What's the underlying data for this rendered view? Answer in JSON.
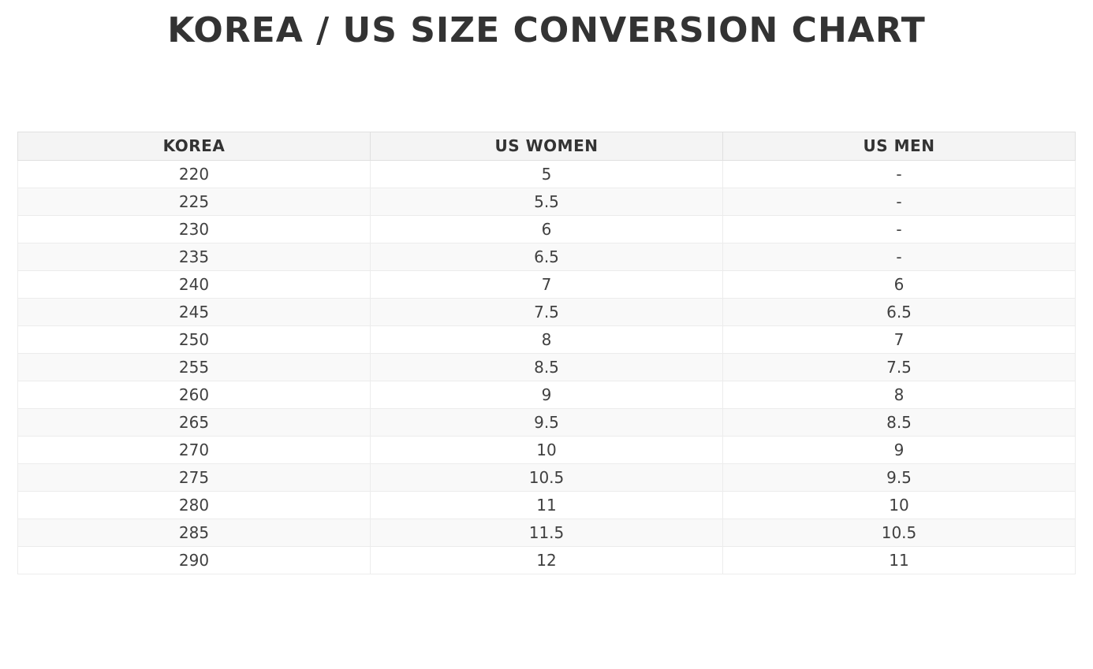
{
  "chart_data": {
    "type": "table",
    "title": "KOREA / US SIZE CONVERSION CHART",
    "columns": [
      "KOREA",
      "US WOMEN",
      "US MEN"
    ],
    "rows": [
      [
        "220",
        "5",
        "-"
      ],
      [
        "225",
        "5.5",
        "-"
      ],
      [
        "230",
        "6",
        "-"
      ],
      [
        "235",
        "6.5",
        "-"
      ],
      [
        "240",
        "7",
        "6"
      ],
      [
        "245",
        "7.5",
        "6.5"
      ],
      [
        "250",
        "8",
        "7"
      ],
      [
        "255",
        "8.5",
        "7.5"
      ],
      [
        "260",
        "9",
        "8"
      ],
      [
        "265",
        "9.5",
        "8.5"
      ],
      [
        "270",
        "10",
        "9"
      ],
      [
        "275",
        "10.5",
        "9.5"
      ],
      [
        "280",
        "11",
        "10"
      ],
      [
        "285",
        "11.5",
        "10.5"
      ],
      [
        "290",
        "12",
        "11"
      ]
    ],
    "layout": {
      "header_row": true,
      "zebra_striping": true,
      "text_align": "center"
    }
  },
  "colors": {
    "title_text": "#333333",
    "header_bg": "#f4f4f4",
    "row_alt_bg": "#f9f9f9",
    "border_outer": "#e0e0e0",
    "border_inner": "#ececec",
    "cell_text": "#404040",
    "page_bg": "#ffffff"
  }
}
